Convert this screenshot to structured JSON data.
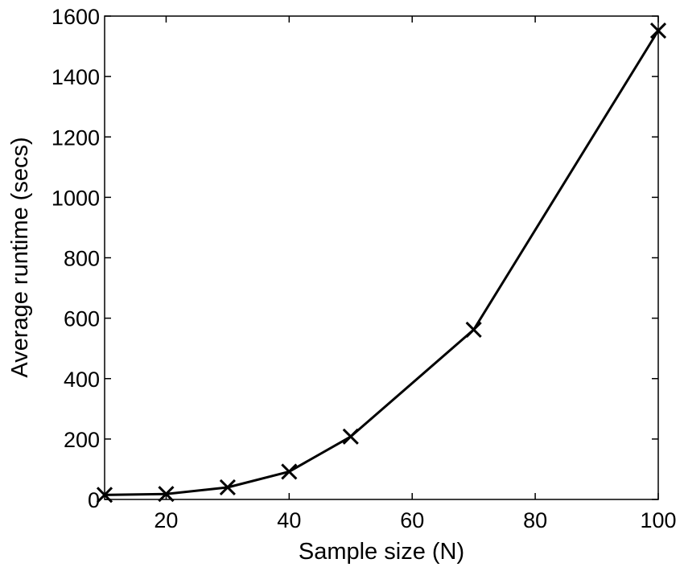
{
  "chart_data": {
    "type": "line",
    "title": "",
    "xlabel": "Sample size (N)",
    "ylabel": "Average runtime (secs)",
    "xlim": [
      10,
      100
    ],
    "ylim": [
      0,
      1600
    ],
    "xticks": [
      20,
      40,
      60,
      80,
      100
    ],
    "yticks": [
      0,
      200,
      400,
      600,
      800,
      1000,
      1200,
      1400,
      1600
    ],
    "grid": false,
    "series": [
      {
        "marker": "x",
        "color": "#000000",
        "x": [
          10,
          20,
          30,
          40,
          50,
          70,
          100
        ],
        "y": [
          15,
          18,
          40,
          92,
          208,
          562,
          1552
        ]
      }
    ]
  }
}
